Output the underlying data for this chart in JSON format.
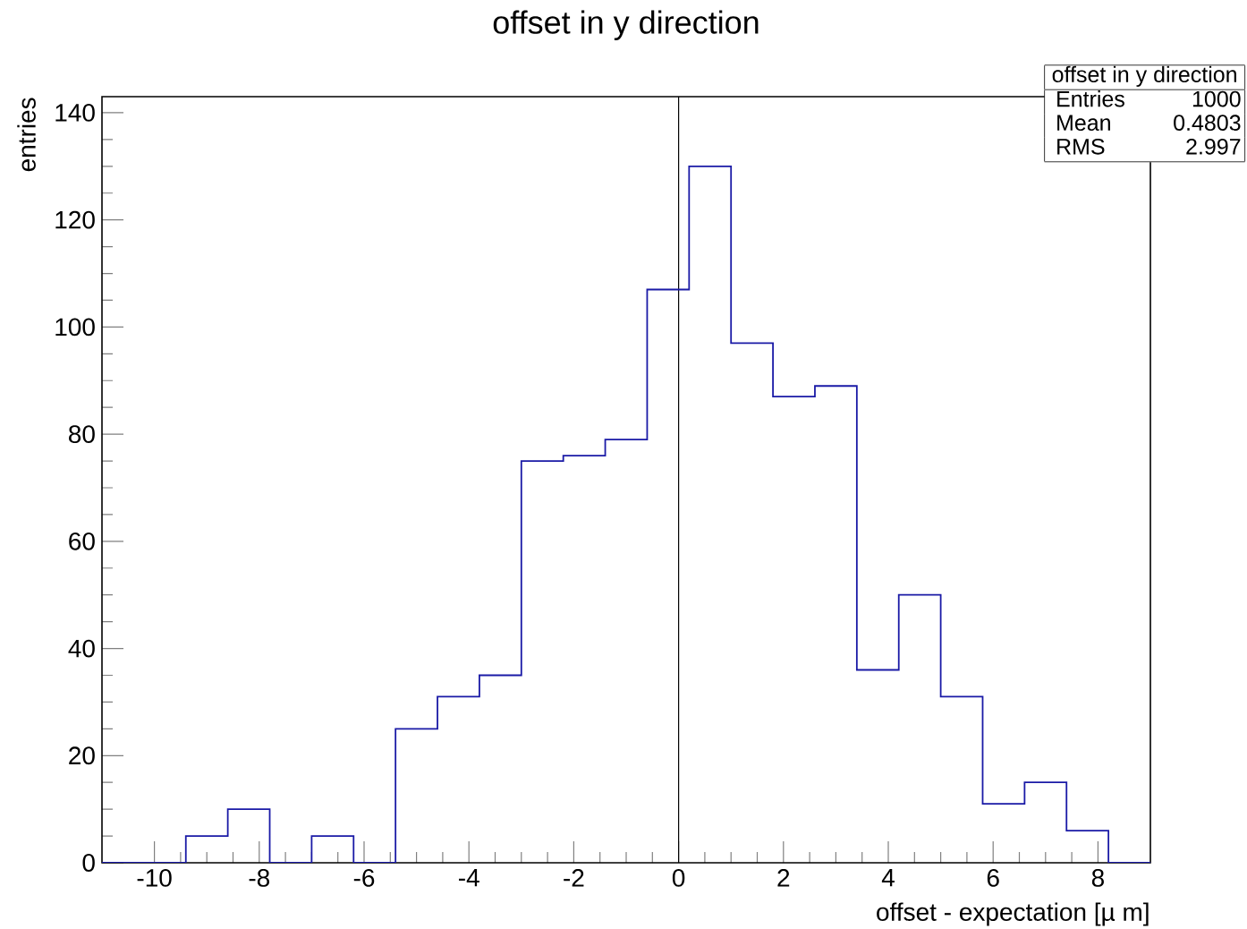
{
  "chart_data": {
    "type": "histogram",
    "title": "offset in y direction",
    "xlabel": "offset - expectation [µ m]",
    "ylabel": "entries",
    "bins": [
      -11,
      -10.2,
      -9.4,
      -8.6,
      -7.8,
      -7.0,
      -6.2,
      -5.4,
      -4.6,
      -3.8,
      -3.0,
      -2.2,
      -1.4,
      -0.6,
      0.2,
      1.0,
      1.8,
      2.6,
      3.4,
      4.2,
      5.0,
      5.8,
      6.6,
      7.4,
      8.2,
      9.0
    ],
    "values": [
      0,
      0,
      5,
      10,
      0,
      5,
      0,
      25,
      31,
      35,
      75,
      76,
      79,
      107,
      130,
      97,
      87,
      89,
      36,
      50,
      31,
      11,
      15,
      6,
      0
    ],
    "color": "#1a1aa6",
    "xlim": [
      -11,
      9
    ],
    "ylim": [
      0,
      143
    ],
    "xticks": [
      -10,
      -8,
      -6,
      -4,
      -2,
      0,
      2,
      4,
      6,
      8
    ],
    "yticks": [
      0,
      20,
      40,
      60,
      80,
      100,
      120,
      140
    ],
    "ref_lines": [
      {
        "axis": "x",
        "value": 0,
        "color": "#000000"
      }
    ],
    "annotations": [
      "offset in y direction",
      "Entries",
      "1000",
      "Mean",
      "0.4803",
      "RMS",
      "2.997"
    ]
  }
}
